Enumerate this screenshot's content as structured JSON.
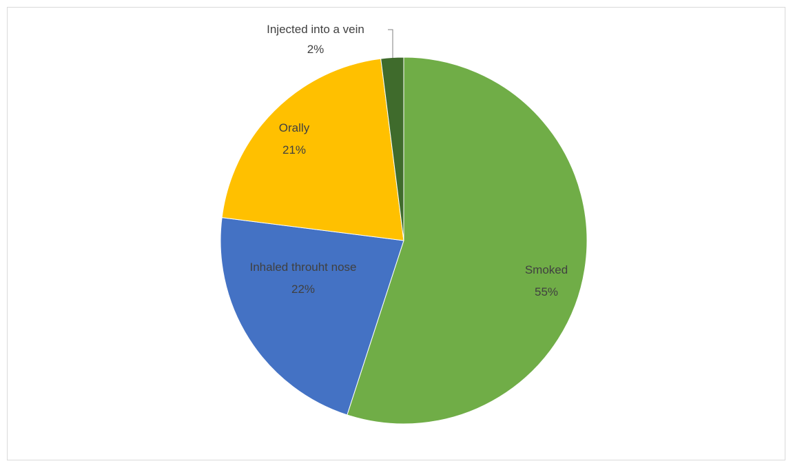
{
  "chart_data": {
    "type": "pie",
    "title": "",
    "slices": [
      {
        "label": "Smoked",
        "value": 55,
        "value_label": "55%",
        "color": "#70ad47"
      },
      {
        "label": "Inhaled throuht nose",
        "value": 22,
        "value_label": "22%",
        "color": "#4472c4"
      },
      {
        "label": "Orally",
        "value": 21,
        "value_label": "21%",
        "color": "#ffc000"
      },
      {
        "label": "Injected into a vein",
        "value": 2,
        "value_label": "2%",
        "color": "#3f6b2c"
      }
    ],
    "legend": "none",
    "start_angle": "top, clockwise"
  }
}
